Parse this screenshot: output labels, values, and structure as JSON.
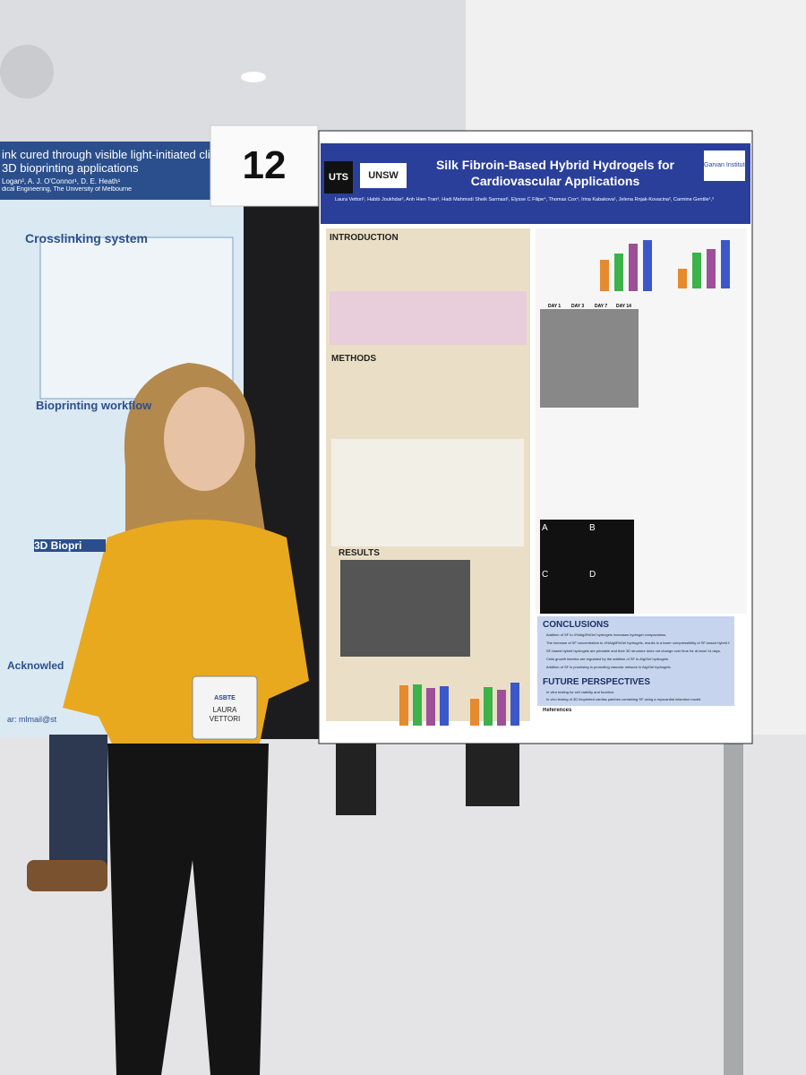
{
  "poster_number": "12",
  "left_poster": {
    "title_lines": [
      "ink cured through visible light-initiated click",
      "3D bioprinting applications"
    ],
    "authors": "Logan², A. J. O'Connor¹, D. E. Heath¹",
    "affiliation": "dical Engineering, The University of Melbourne",
    "headings": [
      "Crosslinking system",
      "Bioprinting workflow",
      "3D Biopri",
      "Acknowled"
    ],
    "email": "ar: mlmail@st"
  },
  "right_poster": {
    "logos": [
      "UTS",
      "UNSW",
      "Garvan Institute"
    ],
    "title_lines": [
      "Silk Fibroin-Based Hybrid Hydrogels for",
      "Cardiovascular Applications"
    ],
    "authors": "Laura Vettori¹, Habib Joukhdar², Anh Hien Tran², Hadi Mahmodi Sheik Sarmast¹, Elysse C Filipe⁴, Thomas Cox⁴, Irina Kabakova¹, Jelena Rnjak-Kovacina², Carmine Gentile¹,³",
    "sections": [
      "INTRODUCTION",
      "METHODS",
      "RESULTS",
      "CONCLUSIONS",
      "FUTURE PERSPECTIVES",
      "References"
    ],
    "conclusions": [
      "Addition of SF to 4%Alg/8%Gel hydrogels increases hydrogel compactness.",
      "The increase of SF concentration to 4%Alg/8%Gel hydrogels, results in a lower compressibility of SF-based hybrid hydrogels.",
      "SF-based hybrid hydrogels are printable and their 3D structure does not change over time for at least 14 days.",
      "Cells growth kinetics are regulated by the addition of SF to Alg/Gel hydrogels.",
      "Addition of SF is promising in promoting vascular network in Alg/Gel hydrogels."
    ],
    "future": [
      "In vitro testing for cell viability and function.",
      "In vivo testing of 3D bioprinted cardiac patches containing SF using a myocardial infarction model."
    ],
    "day_labels": [
      "DAY 1",
      "DAY 3",
      "DAY 7",
      "DAY 14"
    ],
    "panel_labels": [
      "A",
      "B",
      "C",
      "D"
    ]
  },
  "badge": {
    "logo": "ASBTE",
    "name_lines": [
      "LAURA",
      "VETTORI"
    ]
  }
}
